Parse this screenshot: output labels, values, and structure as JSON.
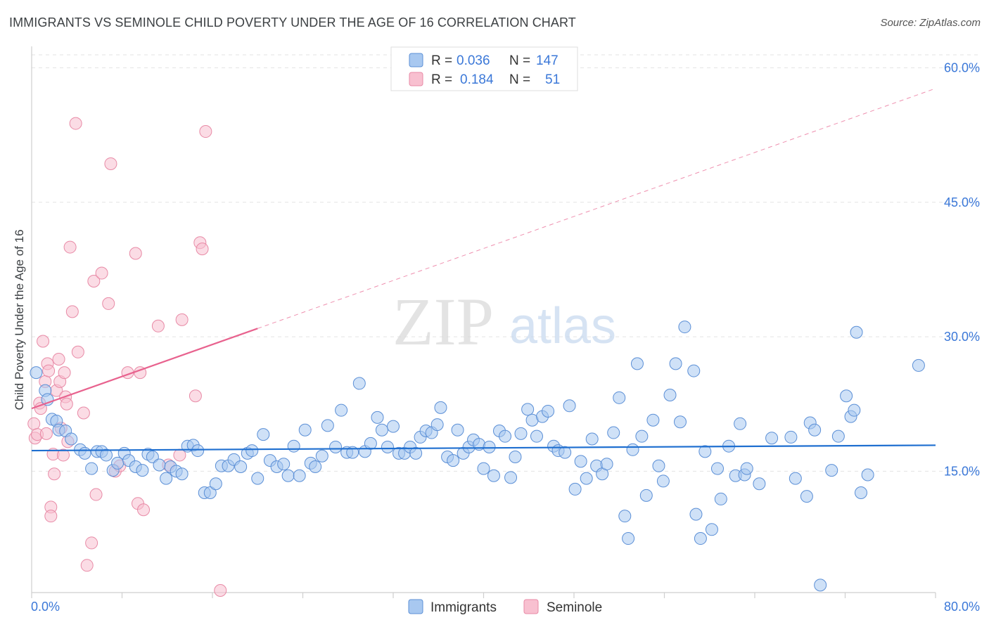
{
  "header": {
    "title": "IMMIGRANTS VS SEMINOLE CHILD POVERTY UNDER THE AGE OF 16 CORRELATION CHART",
    "source": "Source: ZipAtlas.com"
  },
  "colors": {
    "immigrants_fill": "#a8c8f0",
    "immigrants_stroke": "#5b8fd6",
    "immigrants_line": "#1f6fd0",
    "seminole_fill": "#f8c0d0",
    "seminole_stroke": "#e88aa6",
    "seminole_line": "#e8628e",
    "axis_text": "#3b78d8",
    "grid": "#e3e3e3"
  },
  "watermark": {
    "zip": "ZIP",
    "atlas": "atlas"
  },
  "legend_top": {
    "rows": [
      {
        "r_label": "R =",
        "r_value": "0.036",
        "n_label": "N =",
        "n_value": "147"
      },
      {
        "r_label": "R =",
        "r_value": "0.184",
        "n_label": "N =",
        "n_value": "51"
      }
    ]
  },
  "legend_bottom": {
    "items": [
      "Immigrants",
      "Seminole"
    ]
  },
  "chart_data": {
    "type": "scatter",
    "title": "IMMIGRANTS VS SEMINOLE CHILD POVERTY UNDER THE AGE OF 16 CORRELATION CHART",
    "xlabel": "",
    "ylabel": "Child Poverty Under the Age of 16",
    "xlim": [
      0,
      80
    ],
    "ylim": [
      0,
      62
    ],
    "x_tick_labels": [
      "0.0%",
      "80.0%"
    ],
    "y_ticks": [
      15,
      30,
      45,
      60
    ],
    "y_tick_labels": [
      "15.0%",
      "30.0%",
      "45.0%",
      "60.0%"
    ],
    "grid": true,
    "series": [
      {
        "name": "Immigrants",
        "R": 0.036,
        "N": 147,
        "trend": {
          "x0": 0,
          "y0": 17.3,
          "x1": 80,
          "y1": 17.9
        },
        "points": [
          [
            0.4,
            26.0
          ],
          [
            1.2,
            24.0
          ],
          [
            1.4,
            23.0
          ],
          [
            1.8,
            20.8
          ],
          [
            2.2,
            20.6
          ],
          [
            2.4,
            19.6
          ],
          [
            3.0,
            19.5
          ],
          [
            3.5,
            18.6
          ],
          [
            4.3,
            17.4
          ],
          [
            4.7,
            17.0
          ],
          [
            5.3,
            15.3
          ],
          [
            5.8,
            17.2
          ],
          [
            6.2,
            17.2
          ],
          [
            6.6,
            16.8
          ],
          [
            7.2,
            15.1
          ],
          [
            7.6,
            15.9
          ],
          [
            8.2,
            17.0
          ],
          [
            8.6,
            16.2
          ],
          [
            9.2,
            15.5
          ],
          [
            9.8,
            15.1
          ],
          [
            10.3,
            16.9
          ],
          [
            10.7,
            16.6
          ],
          [
            11.3,
            15.7
          ],
          [
            11.9,
            14.2
          ],
          [
            12.3,
            15.5
          ],
          [
            12.8,
            15.0
          ],
          [
            13.3,
            14.7
          ],
          [
            13.8,
            17.8
          ],
          [
            14.3,
            17.9
          ],
          [
            14.7,
            17.3
          ],
          [
            15.3,
            12.6
          ],
          [
            15.8,
            12.6
          ],
          [
            16.3,
            13.6
          ],
          [
            16.8,
            15.6
          ],
          [
            17.4,
            15.6
          ],
          [
            17.9,
            16.3
          ],
          [
            18.5,
            15.5
          ],
          [
            19.1,
            17.0
          ],
          [
            19.5,
            17.3
          ],
          [
            20.0,
            14.2
          ],
          [
            20.5,
            19.1
          ],
          [
            21.1,
            16.2
          ],
          [
            21.7,
            15.5
          ],
          [
            22.3,
            15.8
          ],
          [
            22.7,
            14.5
          ],
          [
            23.2,
            17.8
          ],
          [
            23.7,
            14.5
          ],
          [
            24.2,
            19.6
          ],
          [
            24.7,
            15.9
          ],
          [
            25.1,
            15.5
          ],
          [
            25.7,
            16.7
          ],
          [
            26.2,
            20.1
          ],
          [
            26.9,
            17.7
          ],
          [
            27.4,
            21.8
          ],
          [
            27.9,
            17.1
          ],
          [
            28.4,
            17.1
          ],
          [
            29.0,
            24.8
          ],
          [
            29.5,
            17.2
          ],
          [
            30.0,
            18.1
          ],
          [
            30.6,
            21.0
          ],
          [
            31.0,
            19.6
          ],
          [
            31.5,
            17.7
          ],
          [
            32.0,
            20.0
          ],
          [
            32.5,
            17.0
          ],
          [
            33.0,
            17.0
          ],
          [
            33.5,
            17.7
          ],
          [
            34.0,
            17.0
          ],
          [
            34.4,
            18.8
          ],
          [
            34.9,
            19.5
          ],
          [
            35.4,
            19.3
          ],
          [
            35.9,
            20.2
          ],
          [
            36.2,
            22.1
          ],
          [
            36.8,
            16.6
          ],
          [
            37.3,
            16.2
          ],
          [
            37.7,
            19.6
          ],
          [
            38.2,
            17.0
          ],
          [
            38.7,
            17.7
          ],
          [
            39.1,
            18.5
          ],
          [
            39.6,
            18.0
          ],
          [
            40.0,
            15.3
          ],
          [
            40.5,
            17.7
          ],
          [
            40.9,
            14.5
          ],
          [
            41.4,
            19.5
          ],
          [
            41.9,
            18.9
          ],
          [
            42.4,
            14.3
          ],
          [
            42.8,
            16.6
          ],
          [
            43.3,
            19.2
          ],
          [
            43.9,
            21.9
          ],
          [
            44.3,
            20.7
          ],
          [
            44.7,
            18.9
          ],
          [
            45.2,
            21.1
          ],
          [
            45.7,
            21.7
          ],
          [
            46.2,
            17.8
          ],
          [
            46.6,
            17.3
          ],
          [
            47.2,
            17.1
          ],
          [
            47.6,
            22.3
          ],
          [
            48.1,
            13.0
          ],
          [
            48.6,
            16.1
          ],
          [
            49.1,
            14.2
          ],
          [
            49.6,
            18.6
          ],
          [
            50.0,
            15.6
          ],
          [
            50.5,
            14.7
          ],
          [
            50.9,
            15.8
          ],
          [
            51.5,
            19.3
          ],
          [
            52.0,
            23.2
          ],
          [
            52.5,
            10.0
          ],
          [
            52.8,
            7.5
          ],
          [
            53.2,
            17.4
          ],
          [
            53.6,
            27.0
          ],
          [
            54.0,
            18.9
          ],
          [
            54.4,
            12.3
          ],
          [
            55.0,
            20.7
          ],
          [
            55.5,
            15.6
          ],
          [
            55.9,
            13.9
          ],
          [
            56.5,
            23.5
          ],
          [
            57.0,
            27.0
          ],
          [
            57.4,
            20.5
          ],
          [
            57.8,
            31.1
          ],
          [
            58.6,
            26.2
          ],
          [
            58.8,
            10.2
          ],
          [
            59.2,
            7.5
          ],
          [
            59.6,
            17.2
          ],
          [
            60.2,
            8.5
          ],
          [
            60.7,
            15.3
          ],
          [
            61.0,
            11.9
          ],
          [
            61.7,
            17.8
          ],
          [
            62.3,
            14.5
          ],
          [
            62.7,
            20.3
          ],
          [
            63.1,
            14.6
          ],
          [
            63.3,
            15.3
          ],
          [
            64.4,
            13.6
          ],
          [
            65.5,
            18.7
          ],
          [
            67.2,
            18.8
          ],
          [
            67.6,
            14.2
          ],
          [
            68.6,
            12.2
          ],
          [
            68.9,
            20.4
          ],
          [
            69.3,
            19.6
          ],
          [
            70.8,
            15.1
          ],
          [
            71.4,
            18.9
          ],
          [
            72.1,
            23.4
          ],
          [
            72.5,
            21.1
          ],
          [
            72.8,
            21.8
          ],
          [
            73.0,
            30.5
          ],
          [
            74.0,
            14.6
          ],
          [
            78.5,
            26.8
          ],
          [
            69.8,
            2.3
          ],
          [
            73.4,
            12.6
          ]
        ]
      },
      {
        "name": "Seminole",
        "R": 0.184,
        "N": 51,
        "trend": {
          "x0": 0,
          "y0": 22.0,
          "x1": 80,
          "y1": 57.7
        },
        "trend_solid_until_x": 20,
        "points": [
          [
            0.2,
            20.3
          ],
          [
            0.3,
            18.7
          ],
          [
            0.5,
            19.1
          ],
          [
            0.7,
            22.6
          ],
          [
            0.8,
            22.0
          ],
          [
            1.0,
            29.5
          ],
          [
            1.2,
            25.0
          ],
          [
            1.3,
            19.2
          ],
          [
            1.4,
            27.0
          ],
          [
            1.5,
            26.2
          ],
          [
            1.7,
            11.0
          ],
          [
            1.7,
            10.0
          ],
          [
            1.9,
            16.9
          ],
          [
            2.0,
            14.7
          ],
          [
            2.2,
            24.0
          ],
          [
            2.4,
            27.5
          ],
          [
            2.5,
            25.0
          ],
          [
            2.6,
            19.8
          ],
          [
            2.8,
            16.8
          ],
          [
            2.9,
            26.0
          ],
          [
            3.0,
            23.3
          ],
          [
            3.1,
            22.5
          ],
          [
            3.2,
            18.3
          ],
          [
            3.4,
            40.0
          ],
          [
            3.6,
            32.8
          ],
          [
            3.9,
            53.8
          ],
          [
            4.1,
            28.3
          ],
          [
            4.6,
            21.5
          ],
          [
            4.9,
            4.5
          ],
          [
            5.3,
            7.0
          ],
          [
            5.5,
            36.2
          ],
          [
            5.7,
            12.4
          ],
          [
            6.2,
            37.1
          ],
          [
            6.8,
            33.7
          ],
          [
            7.0,
            49.3
          ],
          [
            7.4,
            15.0
          ],
          [
            7.8,
            15.6
          ],
          [
            8.5,
            26.0
          ],
          [
            9.2,
            39.3
          ],
          [
            9.4,
            11.4
          ],
          [
            9.6,
            26.0
          ],
          [
            9.9,
            10.7
          ],
          [
            11.2,
            31.2
          ],
          [
            12.1,
            15.7
          ],
          [
            13.1,
            16.8
          ],
          [
            13.3,
            31.9
          ],
          [
            14.5,
            23.4
          ],
          [
            14.9,
            40.5
          ],
          [
            15.1,
            39.8
          ],
          [
            15.4,
            52.9
          ],
          [
            16.7,
            1.7
          ]
        ]
      }
    ]
  }
}
